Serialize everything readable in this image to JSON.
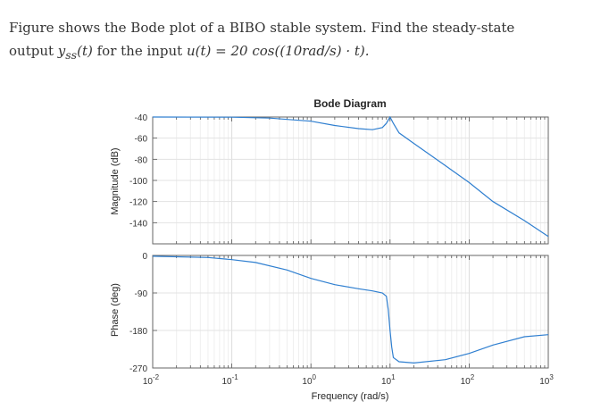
{
  "question": {
    "line1": "Figure shows the Bode plot of a BIBO stable system. Find the steady-state",
    "line2_prefix": "output ",
    "line2_math1": "y",
    "line2_math1_sub": "ss",
    "line2_math1_rest": "(t)",
    "line2_middle": " for the input ",
    "line2_math2": "u(t) = 20 cos((10rad/s) · t)."
  },
  "figure": {
    "title": "Bode Diagram",
    "xlabel": "Frequency  (rad/s)",
    "mag_ylabel": "Magnitude (dB)",
    "phase_ylabel": "Phase (deg)",
    "line_color": "#2f7fd0"
  },
  "chart_data": [
    {
      "type": "line",
      "name": "magnitude",
      "x_scale": "log",
      "xlim": [
        0.01,
        1000
      ],
      "ylim": [
        -160,
        -40
      ],
      "yticks": [
        -40,
        -60,
        -80,
        -100,
        -120,
        -140
      ],
      "grid": true,
      "x": [
        0.01,
        0.1,
        0.3,
        1,
        2,
        4,
        6,
        8,
        9,
        10,
        11,
        13,
        20,
        50,
        100,
        200,
        500,
        1000
      ],
      "y": [
        -40,
        -40.2,
        -41,
        -44,
        -48,
        -51,
        -52,
        -50,
        -46,
        -40,
        -46,
        -55,
        -65,
        -86,
        -102,
        -120,
        -138,
        -153
      ]
    },
    {
      "type": "line",
      "name": "phase",
      "x_scale": "log",
      "xlim": [
        0.01,
        1000
      ],
      "ylim": [
        -270,
        0
      ],
      "yticks": [
        0,
        -90,
        -180,
        -270
      ],
      "xticks": [
        "10^-2",
        "10^-1",
        "10^0",
        "10^1",
        "10^2",
        "10^3"
      ],
      "grid": true,
      "x": [
        0.01,
        0.05,
        0.1,
        0.2,
        0.5,
        1,
        2,
        4,
        6,
        8,
        9,
        9.5,
        10,
        10.5,
        11,
        13,
        20,
        50,
        100,
        200,
        500,
        1000
      ],
      "y": [
        -2,
        -5,
        -10,
        -17,
        -35,
        -55,
        -70,
        -80,
        -85,
        -90,
        -98,
        -130,
        -180,
        -220,
        -245,
        -255,
        -258,
        -250,
        -235,
        -215,
        -195,
        -190
      ]
    }
  ]
}
